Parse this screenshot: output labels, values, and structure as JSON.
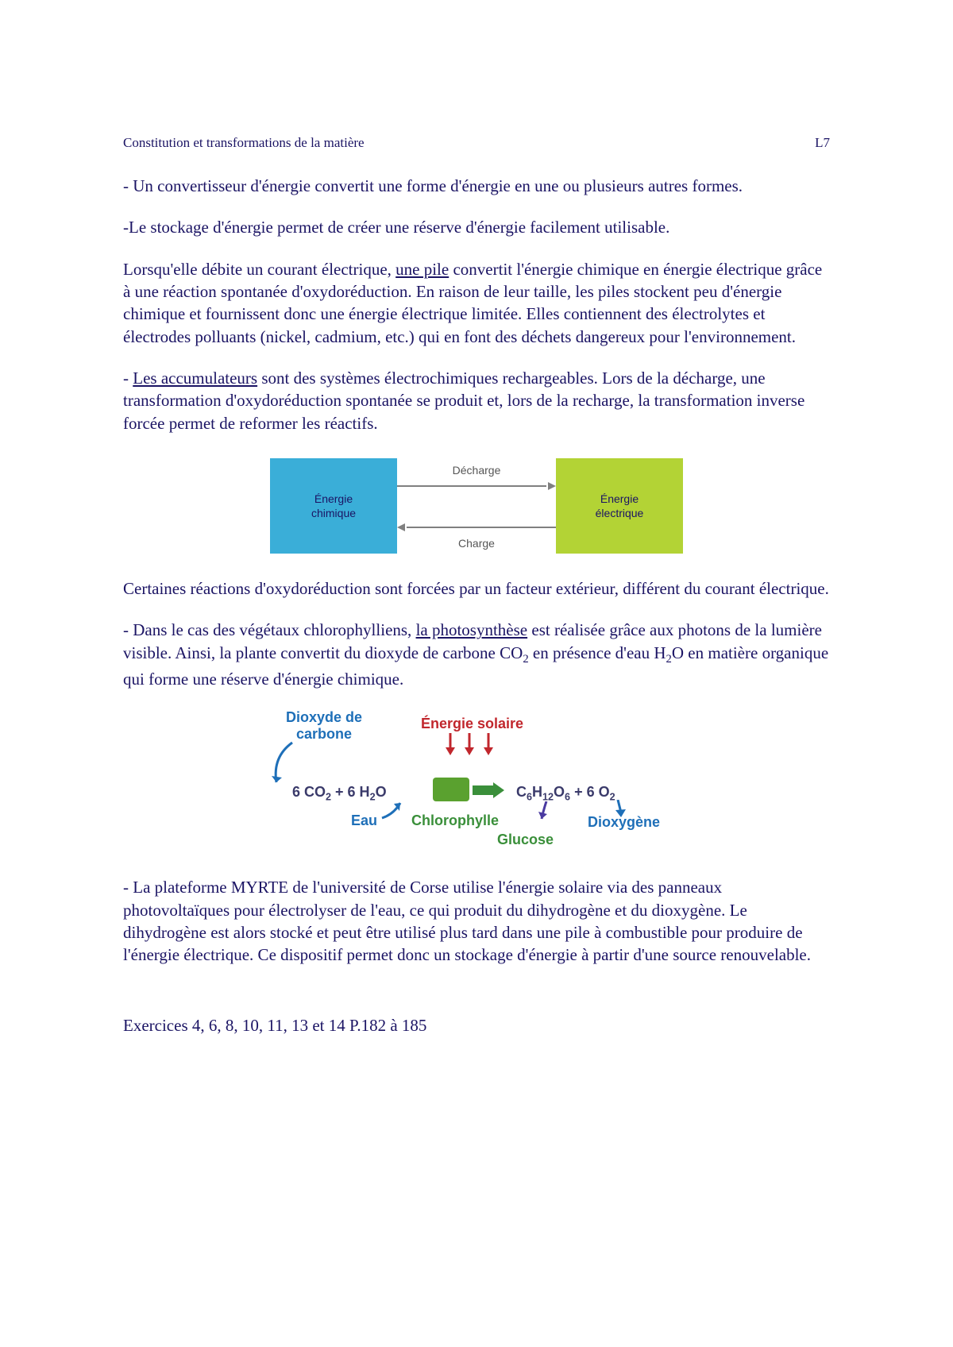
{
  "header": {
    "left": "Constitution et transformations de la matière",
    "right": "L7"
  },
  "paragraphs": {
    "p1": "- Un convertisseur d'énergie convertit une forme d'énergie en une ou plusieurs autres formes.",
    "p2": "-Le stockage d'énergie permet de créer une réserve d'énergie facilement utilisable.",
    "p3a": "Lorsqu'elle débite un courant électrique, ",
    "p3u": "une pile",
    "p3b": " convertit l'énergie chimique en énergie électrique grâce à une réaction spontanée d'oxydoréduction. En raison de leur taille, les piles stockent peu d'énergie chimique et fournissent donc une énergie électrique limitée. Elles contiennent des électrolytes et électrodes polluants (nickel, cadmium, etc.) qui en font des déchets dangereux pour l'environnement.",
    "p4a": "- ",
    "p4u": "Les accumulateurs",
    "p4b": " sont des systèmes électrochimiques rechargeables. Lors de la décharge, une transformation d'oxydoréduction spontanée se produit et, lors de la recharge, la transformation inverse forcée permet de reformer les réactifs.",
    "p5": "Certaines réactions d'oxydoréduction sont forcées par un facteur extérieur, différent du courant électrique.",
    "p6a": "- Dans le cas des végétaux chlorophylliens, ",
    "p6u": "la photosynthèse",
    "p6b": " est réalisée grâce aux photons de la lumière visible. Ainsi, la plante convertit du dioxyde de carbone CO",
    "p6c": " en présence d'eau H",
    "p6d": "O en matière organique qui forme une réserve d'énergie chimique.",
    "p7": "- La plateforme MYRTE de l'université de Corse utilise l'énergie solaire via des panneaux photovoltaïques pour électrolyser de l'eau, ce qui produit du dihydrogène et du dioxygène. Le dihydrogène est alors stocké et peut être utilisé plus tard dans une pile à combustible pour produire de l'énergie électrique. Ce dispositif permet donc un stockage d'énergie à partir d'une source renouvelable."
  },
  "energy_diagram": {
    "type": "flowchart",
    "left_box_label": "Énergie\nchimique",
    "right_box_label": "Énergie\nélectrique",
    "top_arrow_label": "Décharge",
    "bottom_arrow_label": "Charge",
    "left_box_bg": "#3aaed8",
    "left_box_text": "#1b1464",
    "right_box_bg": "#b3d335",
    "right_box_text": "#1b1464",
    "arrow_color": "#808080",
    "label_color": "#555555",
    "label_fontsize": 14,
    "box_fontsize": 14
  },
  "photo_diagram": {
    "type": "infographic",
    "colors": {
      "co2": "#1e6fb8",
      "eau": "#1e6fb8",
      "solar": "#c1272d",
      "chlorophylle": "#3a8f3a",
      "products": "#3a3a6a",
      "glucose": "#3a8f3a",
      "dioxygene": "#1e6fb8",
      "leaf": "#5aa12f",
      "reactants_text": "#3a3a6a",
      "arrow_blue": "#1e6fb8",
      "arrow_red": "#c1272d",
      "arrow_green": "#3a8f3a",
      "arrow_purple": "#4a3aa0"
    },
    "labels": {
      "co2": "Dioxyde de\ncarbone",
      "solar": "Énergie solaire",
      "eau": "Eau",
      "chlorophylle": "Chlorophylle",
      "glucose": "Glucose",
      "dioxygene": "Dioxygène"
    },
    "equation": {
      "left": "6 CO₂ + 6 H₂O",
      "right": "C₆H₁₂O₆ + 6 O₂"
    }
  },
  "exercises": "Exercices 4, 6, 8, 10, 11, 13 et 14 P.182 à 185"
}
